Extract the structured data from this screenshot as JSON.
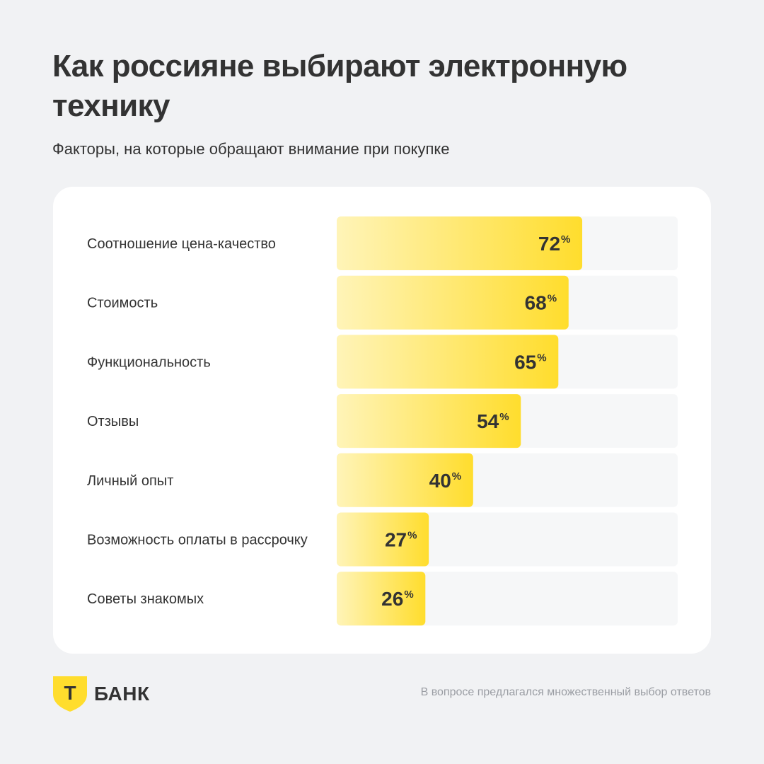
{
  "header": {
    "title": "Как россияне выбирают электронную технику",
    "subtitle": "Факторы, на которые обращают внимание при покупке"
  },
  "chart_data": {
    "type": "bar",
    "orientation": "horizontal",
    "categories": [
      "Соотношение цена-качество",
      "Стоимость",
      "Функциональность",
      "Отзывы",
      "Личный опыт",
      "Возможность оплаты в рассрочку",
      "Советы знакомых"
    ],
    "values": [
      72,
      68,
      65,
      54,
      40,
      27,
      26
    ],
    "unit": "%",
    "xlim": [
      0,
      100
    ],
    "grid": false,
    "legend": "none"
  },
  "colors": {
    "bar_start": "#FFF4B8",
    "bar_end": "#FFDD2D",
    "track": "#F6F7F8",
    "background": "#F1F2F4",
    "card": "#FFFFFF",
    "text": "#333333",
    "muted": "#9A9DA3"
  },
  "brand": {
    "logo_letter": "Т",
    "name": "БАНК",
    "logo_icon": "t-shield-icon"
  },
  "footnote": "В вопросе предлагался множественный выбор ответов"
}
